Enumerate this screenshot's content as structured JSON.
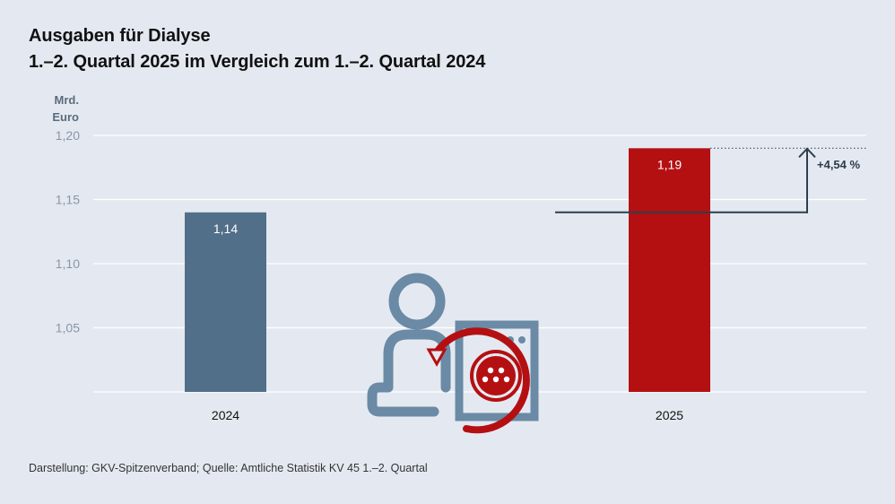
{
  "title_line1": "Ausgaben für Dialyse",
  "title_line2": "1.–2. Quartal 2025 im Vergleich zum 1.–2. Quartal 2024",
  "footer": "Darstellung: GKV-Spitzenverband; Quelle: Amtliche Statistik KV 45 1.–2. Quartal",
  "change_label": "+4,54 %",
  "icon": "dialysis-patient-machine-icon",
  "colors": {
    "bar_2024": "#526f89",
    "bar_2025": "#b41012",
    "grid": "#ffffff",
    "icon_blue": "#6a8aa5",
    "icon_red": "#b41012"
  },
  "chart_data": {
    "type": "bar",
    "title": "Ausgaben für Dialyse",
    "subtitle": "1.–2. Quartal 2025 im Vergleich zum 1.–2. Quartal 2024",
    "ylabel": "Mrd. Euro",
    "ylabel_lines": [
      "Mrd.",
      "Euro"
    ],
    "categories": [
      "2024",
      "2025"
    ],
    "values": [
      1.14,
      1.19
    ],
    "value_labels": [
      "1,14",
      "1,19"
    ],
    "ylim": [
      1.0,
      1.2
    ],
    "yticks": [
      1.05,
      1.1,
      1.15,
      1.2
    ],
    "ytick_labels": [
      "1,05",
      "1,10",
      "1,15",
      "1,20"
    ],
    "grid": true
  }
}
